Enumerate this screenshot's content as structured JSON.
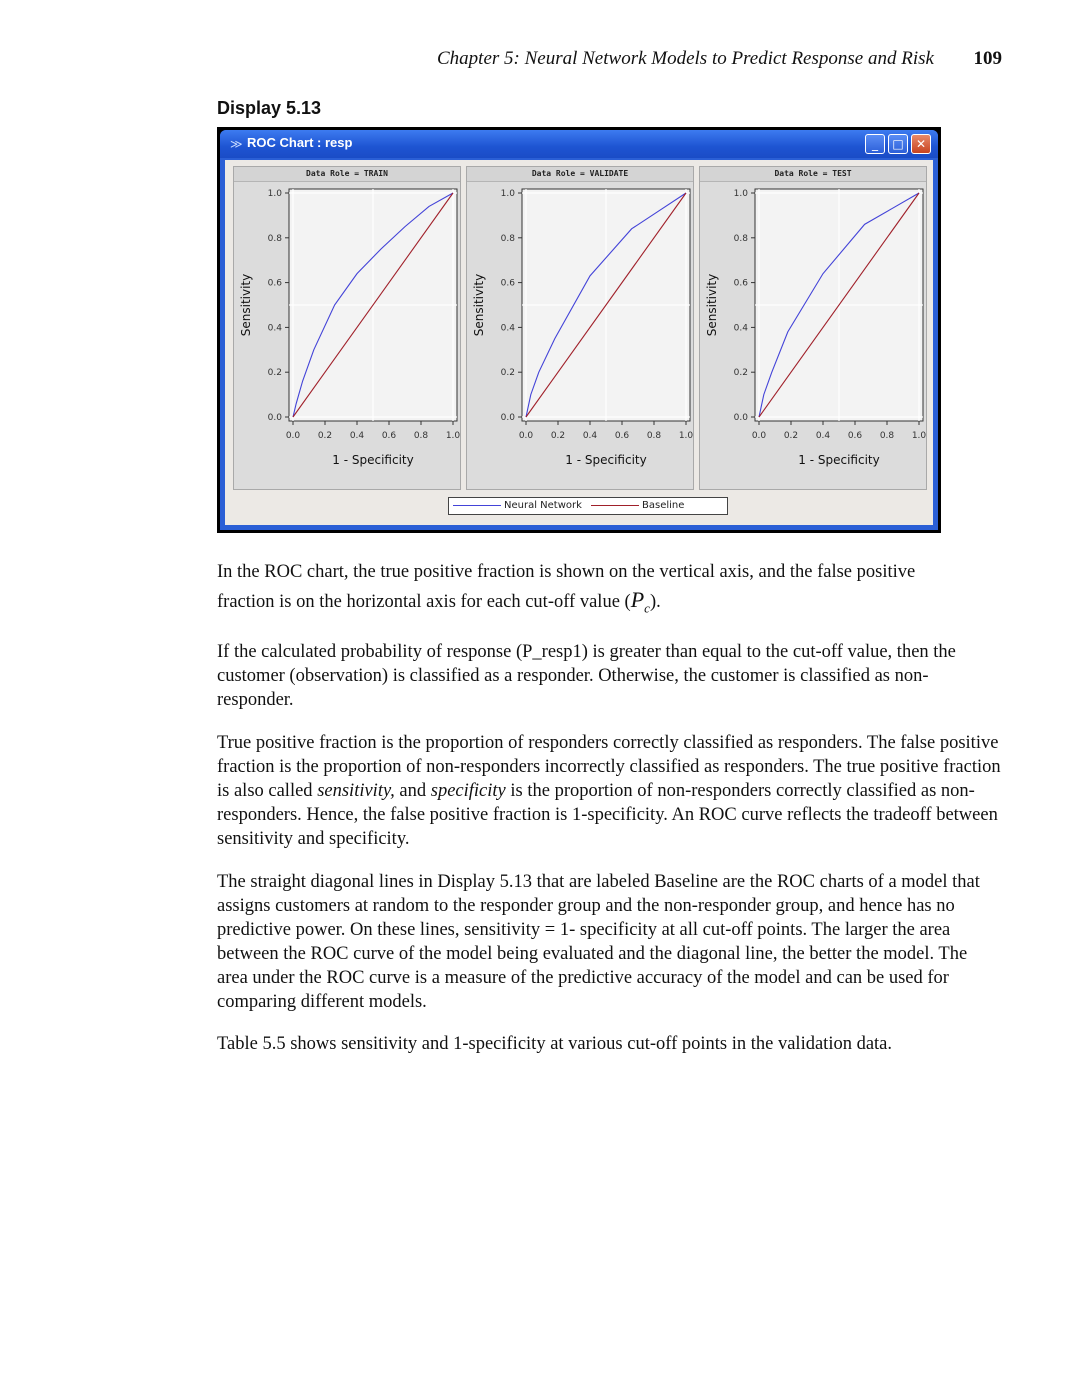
{
  "header": {
    "chapter": "Chapter 5: Neural Network Models to Predict Response and Risk",
    "page_number": "109"
  },
  "display_label": "Display 5.13",
  "window": {
    "title": "ROC Chart : resp",
    "buttons": {
      "minimize": "_",
      "maximize": "□",
      "close": "✕"
    },
    "icon": "chart-window-icon"
  },
  "colors": {
    "neural_network": "#4343d8",
    "baseline": "#a0202a",
    "window_blue": "#2a5fd6"
  },
  "chart_data": [
    {
      "type": "line",
      "title": "Data Role = TRAIN",
      "xlabel": "1 - Specificity",
      "ylabel": "Sensitivity",
      "xlim": [
        0,
        1
      ],
      "ylim": [
        0,
        1
      ],
      "xticks": [
        "0.0",
        "0.2",
        "0.4",
        "0.6",
        "0.8",
        "1.0"
      ],
      "yticks": [
        "0.0",
        "0.2",
        "0.4",
        "0.6",
        "0.8",
        "1.0"
      ],
      "grid": true,
      "series": [
        {
          "name": "Neural Network",
          "color": "#4343d8",
          "x": [
            0.0,
            0.02,
            0.06,
            0.13,
            0.26,
            0.4,
            0.55,
            0.7,
            0.85,
            1.0
          ],
          "y": [
            0.0,
            0.06,
            0.16,
            0.3,
            0.5,
            0.64,
            0.75,
            0.85,
            0.94,
            1.0
          ]
        },
        {
          "name": "Baseline",
          "color": "#a0202a",
          "x": [
            0,
            1
          ],
          "y": [
            0,
            1
          ]
        }
      ]
    },
    {
      "type": "line",
      "title": "Data Role = VALIDATE",
      "xlabel": "1 - Specificity",
      "ylabel": "Sensitivity",
      "xlim": [
        0,
        1
      ],
      "ylim": [
        0,
        1
      ],
      "xticks": [
        "0.0",
        "0.2",
        "0.4",
        "0.6",
        "0.8",
        "1.0"
      ],
      "yticks": [
        "0.0",
        "0.2",
        "0.4",
        "0.6",
        "0.8",
        "1.0"
      ],
      "grid": true,
      "series": [
        {
          "name": "Neural Network",
          "color": "#4343d8",
          "x": [
            0.0,
            0.03,
            0.08,
            0.18,
            0.4,
            0.66,
            0.83,
            1.0
          ],
          "y": [
            0.0,
            0.1,
            0.2,
            0.35,
            0.63,
            0.84,
            0.92,
            1.0
          ]
        },
        {
          "name": "Baseline",
          "color": "#a0202a",
          "x": [
            0,
            1
          ],
          "y": [
            0,
            1
          ]
        }
      ]
    },
    {
      "type": "line",
      "title": "Data Role = TEST",
      "xlabel": "1 - Specificity",
      "ylabel": "Sensitivity",
      "xlim": [
        0,
        1
      ],
      "ylim": [
        0,
        1
      ],
      "xticks": [
        "0.0",
        "0.2",
        "0.4",
        "0.6",
        "0.8",
        "1.0"
      ],
      "yticks": [
        "0.0",
        "0.2",
        "0.4",
        "0.6",
        "0.8",
        "1.0"
      ],
      "grid": true,
      "series": [
        {
          "name": "Neural Network",
          "color": "#4343d8",
          "x": [
            0.0,
            0.03,
            0.08,
            0.18,
            0.4,
            0.66,
            0.83,
            1.0
          ],
          "y": [
            0.0,
            0.1,
            0.2,
            0.38,
            0.64,
            0.86,
            0.93,
            1.0
          ]
        },
        {
          "name": "Baseline",
          "color": "#a0202a",
          "x": [
            0,
            1
          ],
          "y": [
            0,
            1
          ]
        }
      ]
    }
  ],
  "legend": {
    "neural_network": "Neural Network",
    "baseline": "Baseline"
  },
  "paragraphs": {
    "p1_a": "In the ROC chart, the true positive fraction is shown on the vertical axis, and the false positive",
    "p1_b": "fraction is on the horizontal axis for each cut-off value (",
    "p1_sym": "P",
    "p1_sub": "c",
    "p1_c": ").",
    "p2": "If the calculated probability of response (P_resp1) is greater than equal to the cut-off value, then the customer (observation) is classified as a responder. Otherwise, the customer is classified as non-responder.",
    "p3_a": "True positive fraction is the proportion of responders correctly classified as responders. The false positive fraction is the proportion of non-responders incorrectly classified as responders. The true positive fraction is also called ",
    "p3_b": "sensitivity,",
    "p3_c": " and ",
    "p3_d": "specificity",
    "p3_e": " is the proportion of non-responders correctly classified as non-responders. Hence, the false positive fraction is 1-specificity. An ROC curve reflects the tradeoff between sensitivity and specificity.",
    "p4": "The straight diagonal lines in Display 5.13 that are labeled Baseline are the ROC charts of a model that assigns customers at random to the responder group and the non-responder group, and hence has no predictive power. On these lines, sensitivity = 1- specificity at all cut-off points. The larger the area between the ROC curve of the model being evaluated and the diagonal line, the better the model. The area under the ROC curve is a measure of the predictive accuracy of the model and can be used for comparing different models.",
    "p5": "Table 5.5 shows sensitivity and 1-specificity at various cut-off points in the validation data."
  }
}
